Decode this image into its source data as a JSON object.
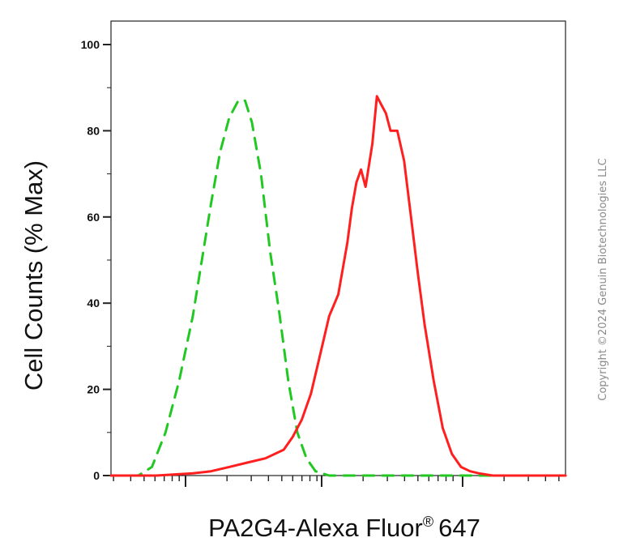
{
  "chart_data": {
    "type": "line",
    "xlabel": "PA2G4-Alexa Fluor",
    "xlabel_superscript": "®",
    "xlabel_suffix": "647",
    "ylabel": "Cell Counts (% Max)",
    "xscale": "log",
    "xlim": [
      0,
      100
    ],
    "ylim": [
      0,
      105
    ],
    "yticks": [
      0,
      20,
      40,
      60,
      80,
      100
    ],
    "grid": false,
    "legend": "none",
    "watermark": "Copyright ©2024 Genuin Biotechnologies LLC",
    "series": [
      {
        "color": "#22c822",
        "style": "dashed",
        "points": [
          [
            0,
            0
          ],
          [
            4,
            0
          ],
          [
            6,
            0
          ],
          [
            9,
            2
          ],
          [
            12,
            10
          ],
          [
            15,
            22
          ],
          [
            18,
            37
          ],
          [
            20,
            50
          ],
          [
            22,
            63
          ],
          [
            24,
            75
          ],
          [
            26,
            83
          ],
          [
            28,
            87
          ],
          [
            29.5,
            87
          ],
          [
            31,
            82
          ],
          [
            33,
            70
          ],
          [
            35,
            52
          ],
          [
            37,
            38
          ],
          [
            39,
            22
          ],
          [
            41,
            10
          ],
          [
            43,
            4
          ],
          [
            45,
            1
          ],
          [
            48,
            0
          ],
          [
            60,
            0
          ],
          [
            100,
            0
          ]
        ]
      },
      {
        "color": "#ff1f1f",
        "style": "solid",
        "points": [
          [
            0,
            0
          ],
          [
            10,
            0
          ],
          [
            18,
            0.5
          ],
          [
            22,
            1
          ],
          [
            26,
            2
          ],
          [
            30,
            3
          ],
          [
            34,
            4
          ],
          [
            38,
            6
          ],
          [
            40,
            9
          ],
          [
            42,
            13
          ],
          [
            44,
            19
          ],
          [
            46,
            28
          ],
          [
            48,
            37
          ],
          [
            50,
            42
          ],
          [
            52,
            54
          ],
          [
            53,
            62
          ],
          [
            54,
            68
          ],
          [
            55,
            71
          ],
          [
            56,
            67
          ],
          [
            57.5,
            77
          ],
          [
            58.5,
            88
          ],
          [
            59.5,
            86
          ],
          [
            60.5,
            84
          ],
          [
            61.5,
            80
          ],
          [
            63,
            80
          ],
          [
            64.5,
            73
          ],
          [
            66,
            60
          ],
          [
            67.5,
            47
          ],
          [
            69,
            35
          ],
          [
            71,
            22
          ],
          [
            73,
            11
          ],
          [
            75,
            5
          ],
          [
            77,
            2
          ],
          [
            79,
            1
          ],
          [
            81,
            0.5
          ],
          [
            84,
            0
          ],
          [
            100,
            0
          ]
        ]
      }
    ]
  }
}
